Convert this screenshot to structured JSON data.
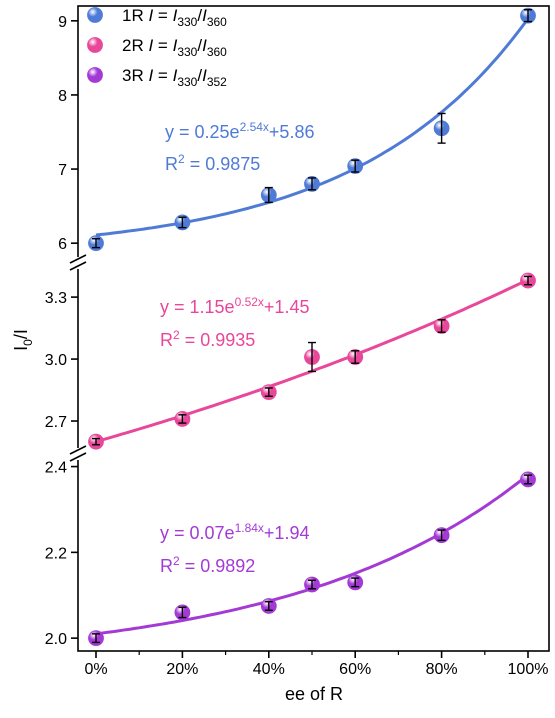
{
  "chart_data": {
    "type": "scatter",
    "xlabel": "ee of R",
    "ylabel": "I0/I",
    "x_categories": [
      "0%",
      "20%",
      "40%",
      "60%",
      "80%",
      "100%"
    ],
    "xlim": [
      0,
      100
    ],
    "legend": {
      "placement": "top-left",
      "entries": [
        {
          "prefix": "1R ",
          "italic_I": "I",
          "eq": " = ",
          "num_sub": "330",
          "den_sub": "360"
        },
        {
          "prefix": "2R ",
          "italic_I": "I",
          "eq": " = ",
          "num_sub": "330",
          "den_sub": "360"
        },
        {
          "prefix": "3R ",
          "italic_I": "I",
          "eq": " = ",
          "num_sub": "330",
          "den_sub": "352"
        }
      ]
    },
    "panels": [
      {
        "name": "1R",
        "color": "#4f7bd6",
        "ylim": [
          5.8,
          9.2
        ],
        "yticks": [
          "6",
          "7",
          "8",
          "9"
        ],
        "x": [
          0,
          20,
          40,
          50,
          60,
          80,
          100
        ],
        "y": [
          6.0,
          6.28,
          6.65,
          6.8,
          7.04,
          7.55,
          9.07
        ],
        "err": [
          0.06,
          0.07,
          0.1,
          0.08,
          0.08,
          0.2,
          0.08
        ],
        "fit": {
          "a": 0.25,
          "b": 2.54,
          "c": 5.86
        },
        "equation": {
          "pre": "y = 0.25e",
          "sup": "2.54x",
          "post": "+5.86"
        },
        "r2": {
          "pre": "R",
          "sup": "2",
          "post": " = 0.9875"
        }
      },
      {
        "name": "2R",
        "color": "#e8479a",
        "ylim": [
          2.55,
          3.47
        ],
        "yticks": [
          "2.7",
          "3.0",
          "3.3"
        ],
        "x": [
          0,
          20,
          40,
          50,
          60,
          80,
          100
        ],
        "y": [
          2.6,
          2.71,
          2.84,
          3.01,
          3.01,
          3.16,
          3.38
        ],
        "err": [
          0.015,
          0.02,
          0.02,
          0.07,
          0.03,
          0.03,
          0.02
        ],
        "fit": {
          "a": 1.15,
          "b": 0.52,
          "c": 1.45
        },
        "equation": {
          "pre": "y = 1.15e",
          "sup": "0.52x",
          "post": "+1.45"
        },
        "r2": {
          "pre": "R",
          "sup": "2",
          "post": " = 0.9935"
        }
      },
      {
        "name": "3R",
        "color": "#a43ad6",
        "ylim": [
          1.97,
          2.42
        ],
        "yticks": [
          "2.0",
          "2.2",
          "2.4"
        ],
        "x": [
          0,
          20,
          40,
          50,
          60,
          80,
          100
        ],
        "y": [
          2.0,
          2.06,
          2.075,
          2.125,
          2.13,
          2.24,
          2.37
        ],
        "err": [
          0.01,
          0.012,
          0.01,
          0.01,
          0.01,
          0.012,
          0.01
        ],
        "fit": {
          "a": 0.07,
          "b": 1.84,
          "c": 1.94
        },
        "equation": {
          "pre": "y = 0.07e",
          "sup": "1.84x",
          "post": "+1.94"
        },
        "r2": {
          "pre": "R",
          "sup": "2",
          "post": " = 0.9892"
        }
      }
    ]
  }
}
